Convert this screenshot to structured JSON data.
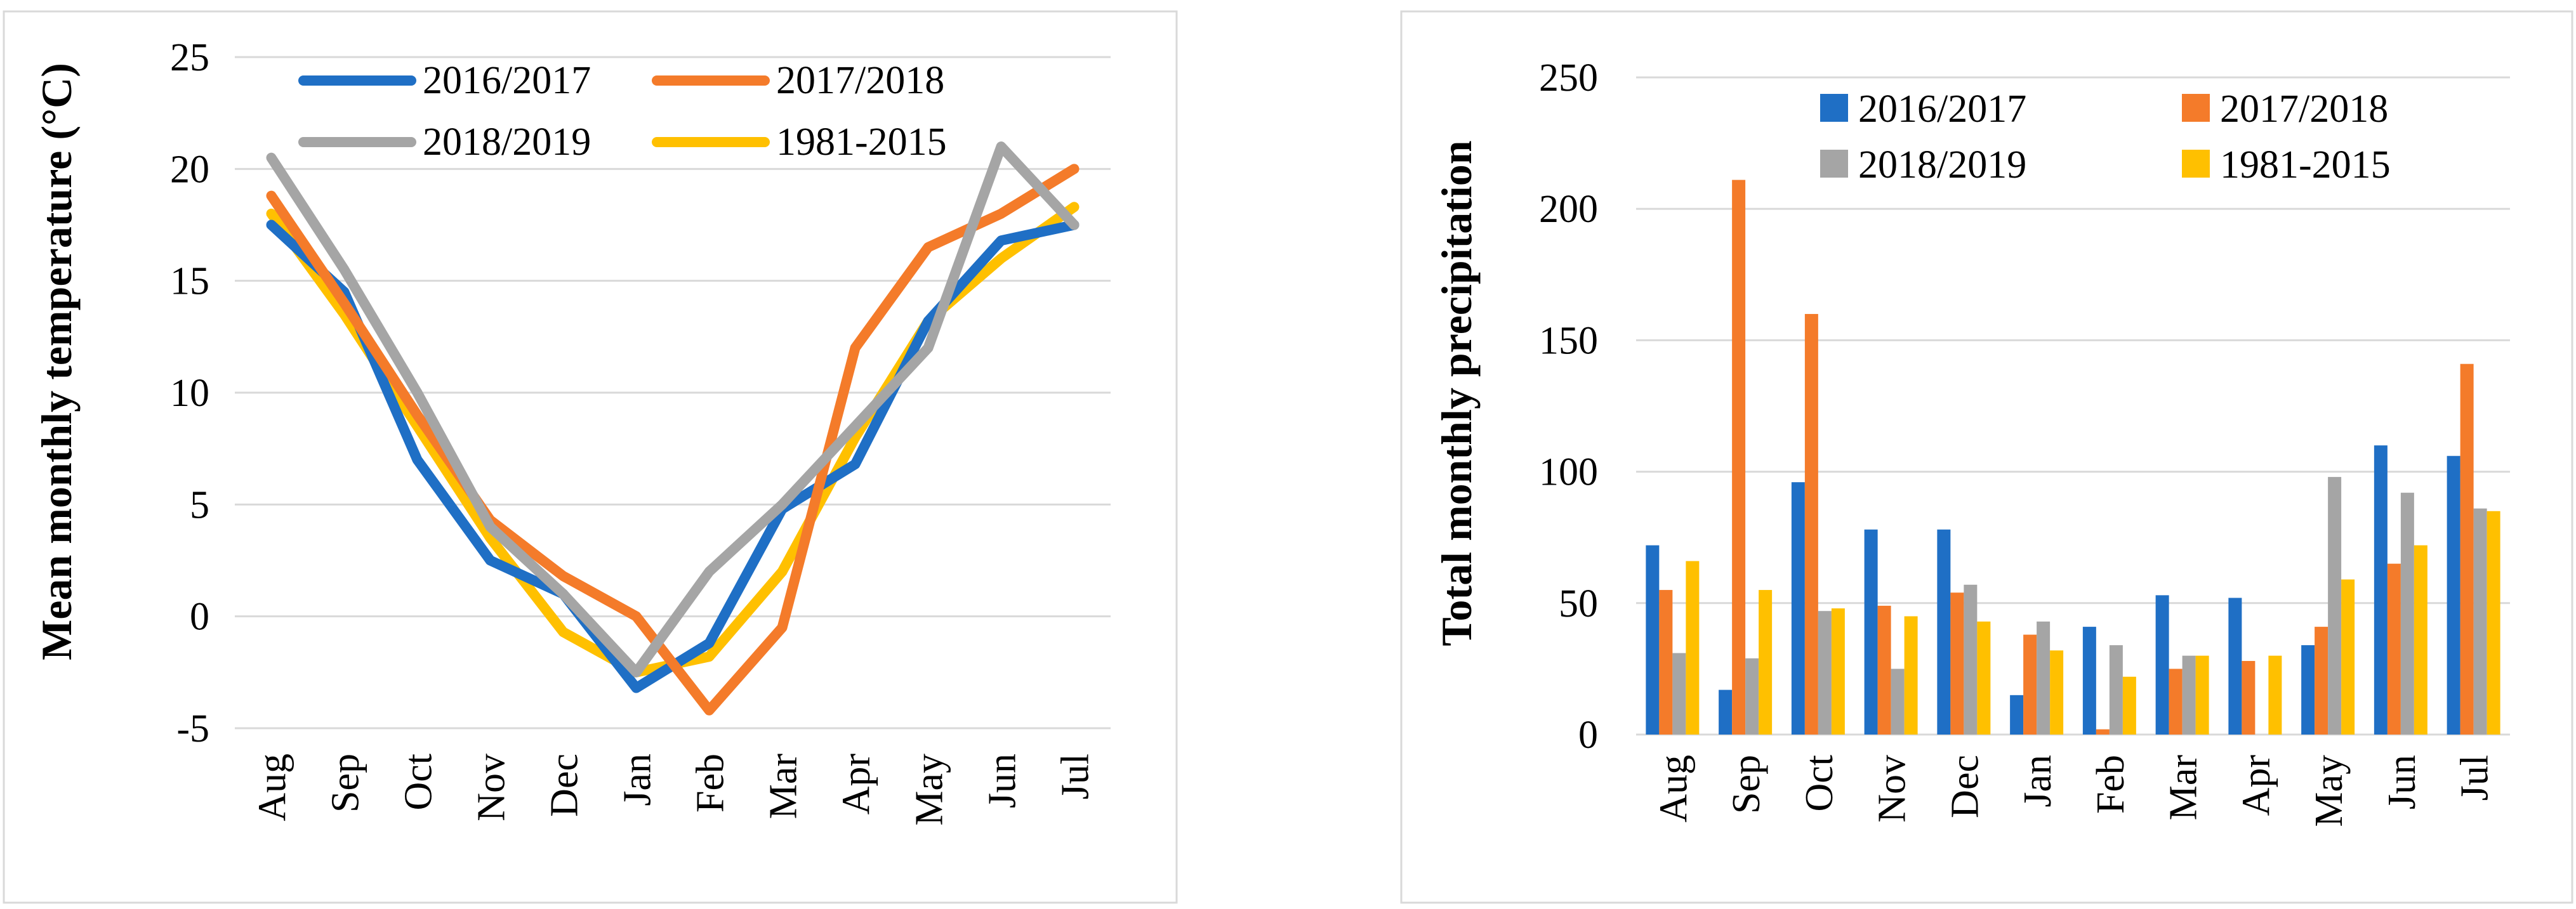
{
  "chart_data": [
    {
      "type": "line",
      "ylabel": "Mean monthly temperature (°C)",
      "xlabel": "",
      "categories": [
        "Aug",
        "Sep",
        "Oct",
        "Nov",
        "Dec",
        "Jan",
        "Feb",
        "Mar",
        "Apr",
        "May",
        "Jun",
        "Jul"
      ],
      "ylim": [
        -5,
        25
      ],
      "yticks": [
        "-5",
        "0",
        "5",
        "10",
        "15",
        "20",
        "25"
      ],
      "grid": true,
      "legend_position": "top",
      "series": [
        {
          "name": "2016/2017",
          "color": "#1f6fc5",
          "values": [
            17.5,
            14.5,
            7.0,
            2.5,
            1.0,
            -3.2,
            -1.2,
            4.8,
            6.8,
            13.2,
            16.8,
            17.5
          ]
        },
        {
          "name": "2017/2018",
          "color": "#f47b2a",
          "values": [
            18.8,
            14.0,
            9.0,
            4.3,
            1.8,
            0.0,
            -4.2,
            -0.5,
            12.0,
            16.5,
            18.0,
            20.0
          ]
        },
        {
          "name": "2018/2019",
          "color": "#a5a5a5",
          "values": [
            20.5,
            15.5,
            10.0,
            4.0,
            1.0,
            -2.5,
            2.0,
            5.0,
            8.5,
            12.0,
            21.0,
            17.5
          ]
        },
        {
          "name": "1981-2015",
          "color": "#ffc000",
          "values": [
            18.0,
            13.5,
            8.5,
            3.5,
            -0.7,
            -2.5,
            -1.8,
            2.0,
            8.0,
            13.2,
            16.0,
            18.3
          ]
        }
      ]
    },
    {
      "type": "bar",
      "ylabel": "Total monthly precipitation",
      "xlabel": "",
      "categories": [
        "Aug",
        "Sep",
        "Oct",
        "Nov",
        "Dec",
        "Jan",
        "Feb",
        "Mar",
        "Apr",
        "May",
        "Jun",
        "Jul"
      ],
      "ylim": [
        0,
        250
      ],
      "yticks": [
        "0",
        "50",
        "100",
        "150",
        "200",
        "250"
      ],
      "grid": true,
      "legend_position": "top",
      "series": [
        {
          "name": "2016/2017",
          "color": "#1f6fc5",
          "values": [
            72,
            17,
            96,
            78,
            78,
            15,
            41,
            53,
            52,
            34,
            110,
            106
          ]
        },
        {
          "name": "2017/2018",
          "color": "#f47b2a",
          "values": [
            55,
            211,
            160,
            49,
            54,
            38,
            2,
            25,
            28,
            41,
            65,
            141
          ]
        },
        {
          "name": "2018/2019",
          "color": "#a5a5a5",
          "values": [
            31,
            29,
            47,
            25,
            57,
            43,
            34,
            30,
            0,
            98,
            92,
            86
          ]
        },
        {
          "name": "1981-2015",
          "color": "#ffc000",
          "values": [
            66,
            55,
            48,
            45,
            43,
            32,
            22,
            30,
            30,
            59,
            72,
            85
          ]
        }
      ]
    }
  ]
}
